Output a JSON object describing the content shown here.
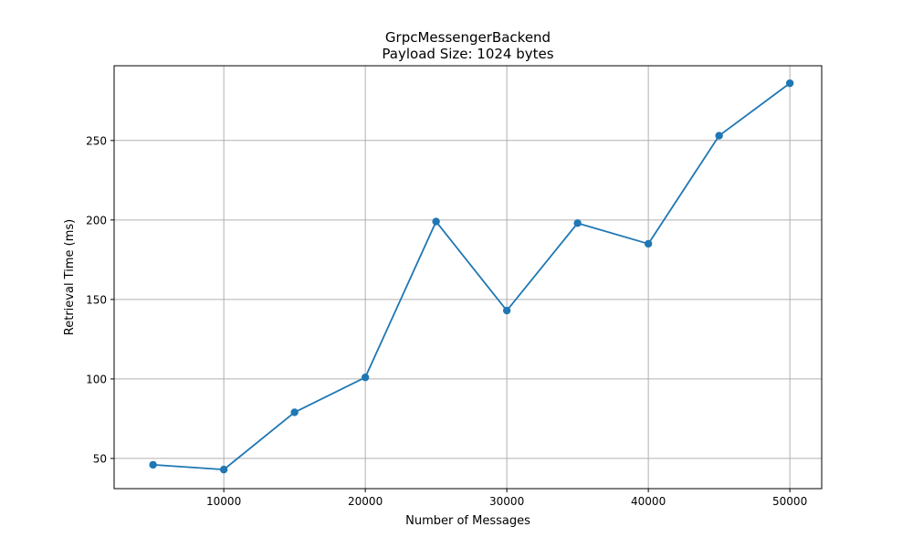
{
  "chart_data": {
    "type": "line",
    "title": "GrpcMessengerBackend",
    "subtitle": "Payload Size: 1024 bytes",
    "xlabel": "Number of Messages",
    "ylabel": "Retrieval Time (ms)",
    "xlim": [
      2250,
      52250
    ],
    "ylim": [
      31,
      297
    ],
    "x_ticks": [
      10000,
      20000,
      30000,
      40000,
      50000
    ],
    "y_ticks": [
      50,
      100,
      150,
      200,
      250
    ],
    "grid": true,
    "series": [
      {
        "color": "#1f77b4",
        "marker": "circle",
        "x": [
          5000,
          10000,
          15000,
          20000,
          25000,
          30000,
          35000,
          40000,
          45000,
          50000
        ],
        "y": [
          46,
          43,
          79,
          101,
          199,
          143,
          198,
          185,
          253,
          286
        ]
      }
    ]
  }
}
